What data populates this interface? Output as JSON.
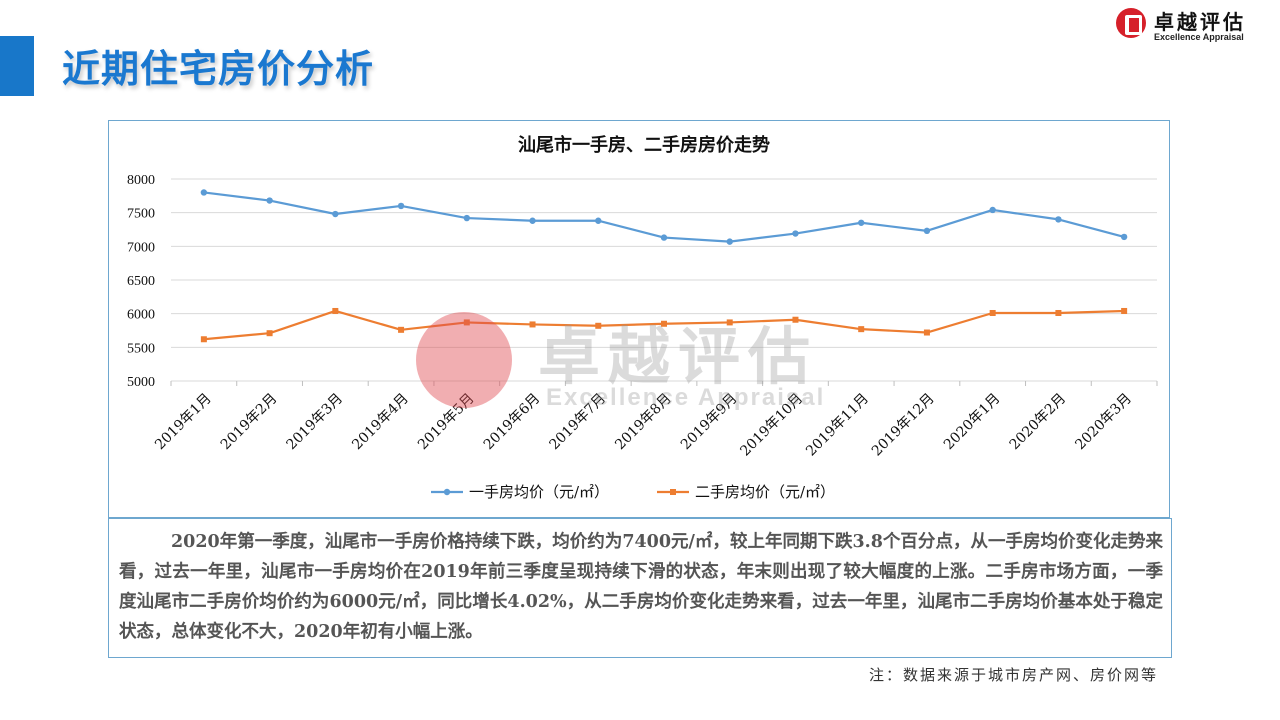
{
  "page": {
    "title": "近期住宅房价分析"
  },
  "brand": {
    "cn": "卓越评估",
    "en": "Excellence Appraisal",
    "color": "#d6202a"
  },
  "watermark": {
    "cn": "卓越评估",
    "en": "Excellence Appraisal"
  },
  "chart_data": {
    "type": "line",
    "title": "汕尾市一手房、二手房房价走势",
    "categories": [
      "2019年1月",
      "2019年2月",
      "2019年3月",
      "2019年4月",
      "2019年5月",
      "2019年6月",
      "2019年7月",
      "2019年8月",
      "2019年9月",
      "2019年10月",
      "2019年11月",
      "2019年12月",
      "2020年1月",
      "2020年2月",
      "2020年3月"
    ],
    "series": [
      {
        "name": "一手房均价（元/㎡）",
        "color": "#5b9bd5",
        "marker": "circle",
        "values": [
          7800,
          7680,
          7480,
          7600,
          7420,
          7380,
          7380,
          7130,
          7070,
          7190,
          7350,
          7230,
          7540,
          7400,
          7140
        ]
      },
      {
        "name": "二手房均价（元/㎡）",
        "color": "#ed7d31",
        "marker": "square",
        "values": [
          5620,
          5710,
          6040,
          5760,
          5870,
          5840,
          5820,
          5850,
          5870,
          5910,
          5770,
          5720,
          6010,
          6010,
          6040
        ]
      }
    ],
    "ylim": [
      5000,
      8000
    ],
    "yticks": [
      5000,
      5500,
      6000,
      6500,
      7000,
      7500,
      8000
    ],
    "xlabel": "",
    "ylabel": "",
    "grid": true,
    "legend": "bottom"
  },
  "summary": "2020年第一季度，汕尾市一手房价格持续下跌，均价约为7400元/㎡，较上年同期下跌3.8个百分点，从一手房均价变化走势来看，过去一年里，汕尾市一手房均价在2019年前三季度呈现持续下滑的状态，年末则出现了较大幅度的上涨。二手房市场方面，一季度汕尾市二手房价均价约为6000元/㎡，同比增长4.02%，从二手房均价变化走势来看，过去一年里，汕尾市二手房均价基本处于稳定状态，总体变化不大，2020年初有小幅上涨。",
  "note": "注：数据来源于城市房产网、房价网等"
}
